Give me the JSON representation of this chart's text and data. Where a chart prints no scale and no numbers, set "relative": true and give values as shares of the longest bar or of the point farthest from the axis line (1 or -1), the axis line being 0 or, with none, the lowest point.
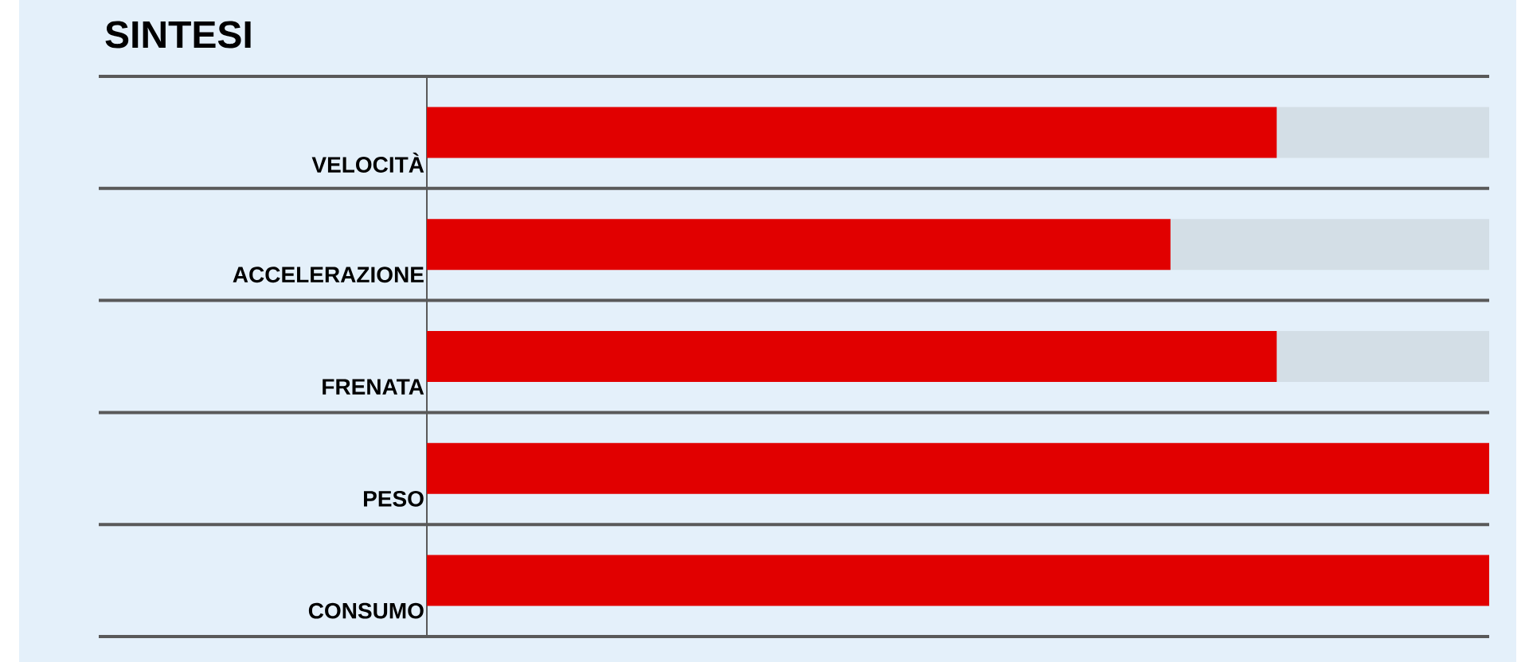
{
  "chart_data": {
    "type": "bar",
    "orientation": "horizontal",
    "stacked": true,
    "relative": true,
    "title": "SINTESI",
    "categories": [
      "VELOCITÀ",
      "ACCELERAZIONE",
      "FRENATA",
      "PESO",
      "CONSUMO"
    ],
    "series": [
      {
        "color": "#e10000",
        "values": [
          0.8,
          0.7,
          0.8,
          1,
          1
        ]
      },
      {
        "color": "#d3dee6",
        "values": [
          0.2,
          0.3,
          0.2,
          0,
          0
        ]
      }
    ],
    "grid": false
  }
}
